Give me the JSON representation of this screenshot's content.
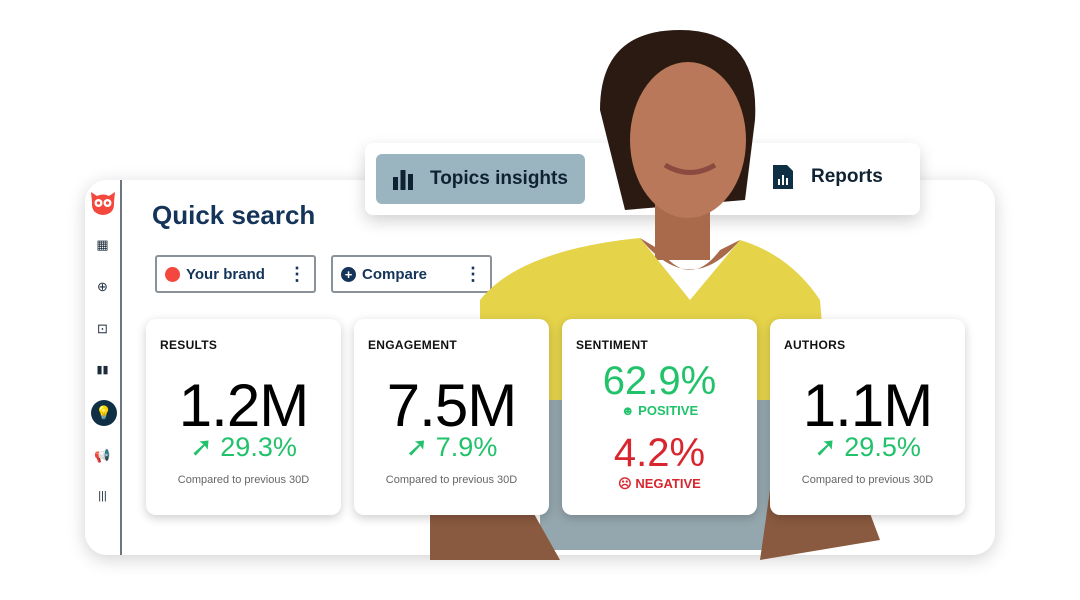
{
  "app": {
    "title": "Quick search",
    "logo": "owl-logo"
  },
  "sidebar": {
    "items": [
      {
        "icon": "calendar-icon"
      },
      {
        "icon": "plus-circle-icon"
      },
      {
        "icon": "inbox-icon"
      },
      {
        "icon": "bar-chart-icon"
      },
      {
        "icon": "lightbulb-icon",
        "active": true
      },
      {
        "icon": "megaphone-icon"
      },
      {
        "icon": "audio-bars-icon"
      }
    ]
  },
  "filters": [
    {
      "label": "Your brand",
      "icon": "red-dot",
      "color": "#f4473d"
    },
    {
      "label": "Compare",
      "icon": "plus-circle-icon"
    }
  ],
  "tabs": [
    {
      "label": "Topics insights",
      "icon": "bar-chart-icon",
      "active": true
    },
    {
      "label": "Reports",
      "icon": "report-file-icon"
    }
  ],
  "cards": [
    {
      "label": "RESULTS",
      "value": "1.2M",
      "change": "29.3%",
      "note": "Compared to previous 30D"
    },
    {
      "label": "ENGAGEMENT",
      "value": "7.5M",
      "change": "7.9%",
      "note": "Compared to previous 30D"
    },
    {
      "label": "SENTIMENT",
      "positive": "62.9%",
      "positive_label": "POSITIVE",
      "negative": "4.2%",
      "negative_label": "NEGATIVE"
    },
    {
      "label": "AUTHORS",
      "value": "1.1M",
      "change": "29.5%",
      "note": "Compared to previous 30D"
    }
  ],
  "colors": {
    "navy": "#14345a",
    "green": "#22c26b",
    "red": "#d9262e",
    "active_tab": "#9bb5c0"
  }
}
